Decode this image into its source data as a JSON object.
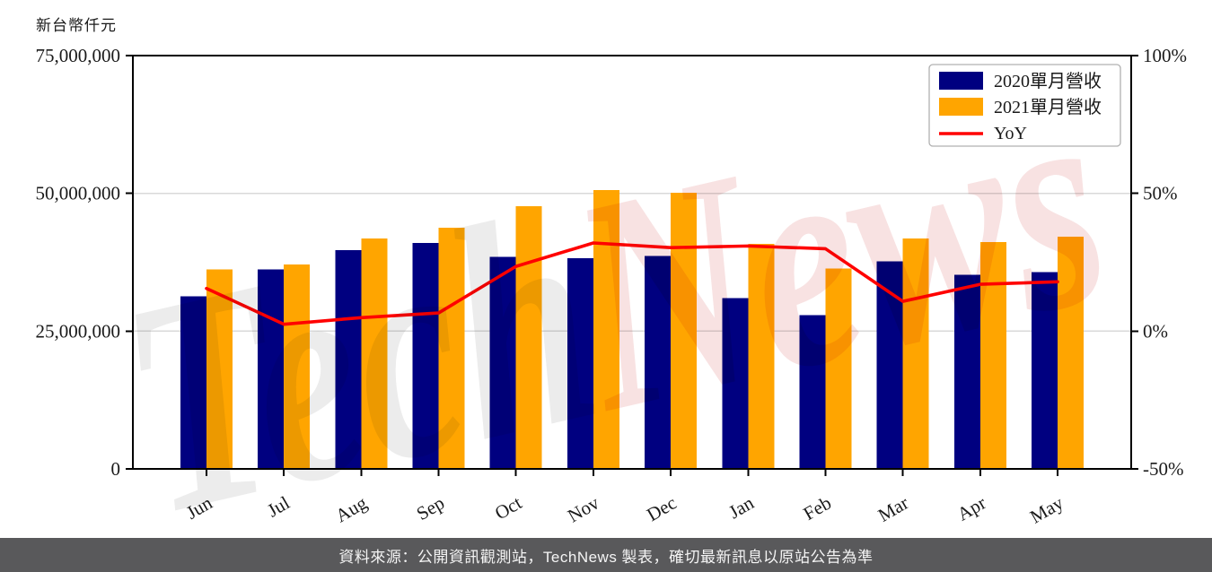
{
  "page": {
    "unit_label": "新台幣仟元",
    "footer_text": "資料來源：公開資訊觀測站，TechNews 製表，確切最新訊息以原站公告為準"
  },
  "watermark": {
    "part_gray": "Tech",
    "part_pink": "News"
  },
  "legend": {
    "items": [
      {
        "label": "2020單月營收",
        "swatch": "bar",
        "color": "#000080"
      },
      {
        "label": "2021單月營收",
        "swatch": "bar",
        "color": "#FFA500"
      },
      {
        "label": "YoY",
        "swatch": "line",
        "color": "#FF0000"
      }
    ]
  },
  "colors": {
    "bar_2020": "#000080",
    "bar_2021": "#FFA500",
    "yoy_line": "#FF0000",
    "grid": "#d9d9d9",
    "axis": "#000000",
    "tick_text": "#1a1a1a",
    "footer_bg": "#59595b",
    "legend_border": "#b0b0b0",
    "watermark_gray": "#ececec",
    "watermark_pink": "#f8e2e2"
  },
  "chart_data": {
    "type": "bar",
    "subtype": "grouped-bars-with-line",
    "categories": [
      "Jun",
      "Jul",
      "Aug",
      "Sep",
      "Oct",
      "Nov",
      "Dec",
      "Jan",
      "Feb",
      "Mar",
      "Apr",
      "May"
    ],
    "series": [
      {
        "name": "2020單月營收",
        "type": "bar",
        "axis": "left",
        "values": [
          31300000,
          36200000,
          39700000,
          41000000,
          38500000,
          38200000,
          38600000,
          31000000,
          27900000,
          37700000,
          35200000,
          35700000
        ]
      },
      {
        "name": "2021單月營收",
        "type": "bar",
        "axis": "left",
        "values": [
          36200000,
          37100000,
          41800000,
          43800000,
          47700000,
          50600000,
          50100000,
          40800000,
          36400000,
          41800000,
          41200000,
          42100000
        ]
      },
      {
        "name": "YoY",
        "type": "line",
        "axis": "right",
        "values": [
          15.5,
          2.5,
          4.9,
          6.6,
          23.5,
          32.0,
          30.3,
          30.9,
          29.9,
          10.8,
          17.0,
          17.9
        ]
      }
    ],
    "title": "",
    "xlabel": "",
    "ylabel": "新台幣仟元",
    "left_axis": {
      "range": [
        0,
        75000000
      ],
      "tick_labels": [
        "0",
        "25,000,000",
        "50,000,000",
        "75,000,000"
      ]
    },
    "right_axis": {
      "range": [
        -50,
        100
      ],
      "tick_labels": [
        "-50%",
        "0%",
        "50%",
        "100%"
      ]
    },
    "gridlines": [
      25000000,
      50000000
    ],
    "legend_position": "upper-right",
    "grid": "horizontal"
  }
}
